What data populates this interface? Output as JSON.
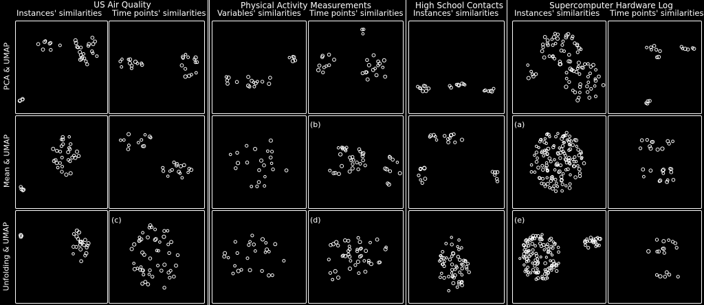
{
  "groups": [
    {
      "title": "US Air Quality",
      "columns": [
        "Instances' similarities",
        "Time points' similarities"
      ]
    },
    {
      "title": "Physical Activity Measurements",
      "columns": [
        "Variables' similarities",
        "Time points' similarities"
      ]
    },
    {
      "title": "High School Contacts",
      "columns": [
        "Instances' similarities"
      ]
    },
    {
      "title": "Supercomputer Hardware Log",
      "columns": [
        "Instances' similarities",
        "Time points' similarities"
      ]
    }
  ],
  "rows": [
    "PCA & UMAP",
    "Mean & UMAP",
    "Unfolding & UMAP"
  ],
  "tags": {
    "b": "(b)",
    "a": "(a)",
    "c": "(c)",
    "d": "(d)",
    "e": "(e)"
  },
  "colors": {
    "background": "#000000",
    "foreground": "#ffffff"
  }
}
